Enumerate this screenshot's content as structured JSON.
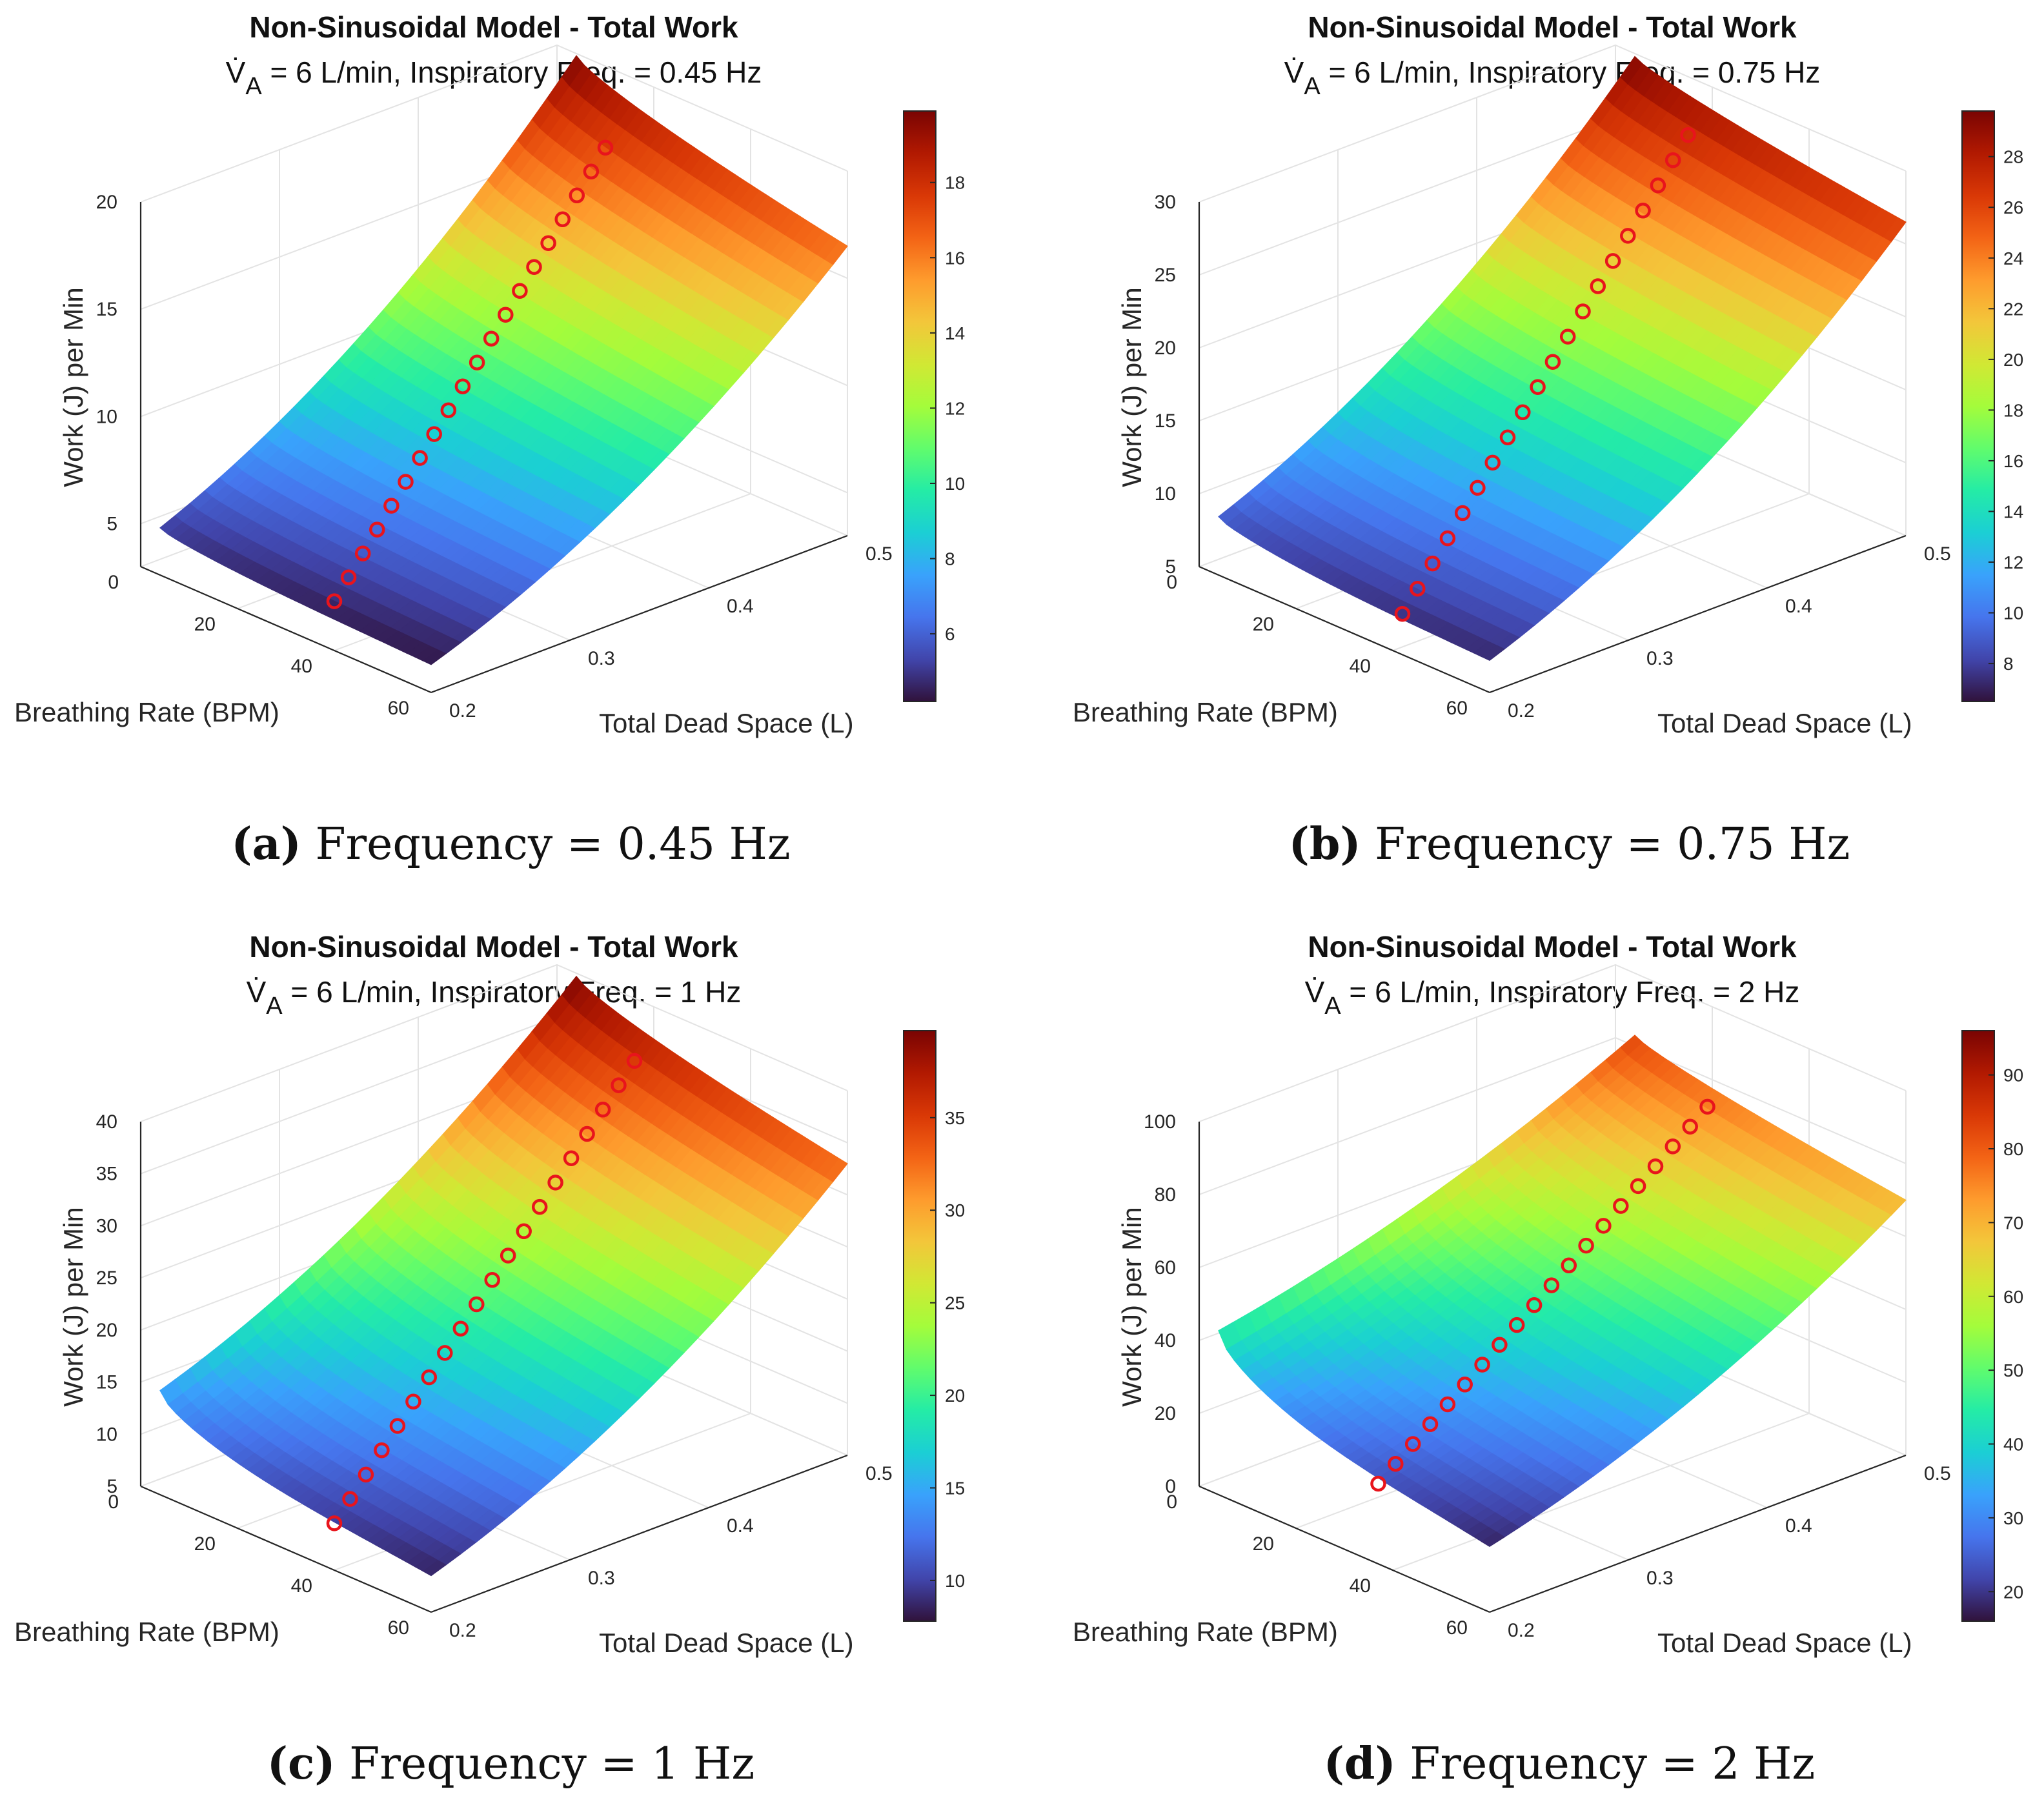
{
  "colormap": [
    "#30123b",
    "#4145ab",
    "#4675ed",
    "#39a2fc",
    "#1bcfd4",
    "#24eca6",
    "#61fc6c",
    "#a4fc3b",
    "#d1e834",
    "#f3c63a",
    "#fe9b2d",
    "#f36315",
    "#d93806",
    "#b11901",
    "#7a0403"
  ],
  "marker_color": "#e8141c",
  "chart_data": [
    {
      "type": "surface",
      "panel_letter": "(a)",
      "caption": "Frequency = 0.45 Hz",
      "title": "Non-Sinusoidal Model - Total Work",
      "subtitle_symbol": "V̇",
      "subtitle_sub": "A",
      "subtitle_rest": " = 6 L/min, Inspiratory Freq. = 0.45 Hz",
      "xlabel": "Breathing Rate (BPM)",
      "ylabel": "Total Dead Space (L)",
      "zlabel": "Work (J) per Min",
      "x_ticks": [
        "0",
        "20",
        "40",
        "60"
      ],
      "y_ticks": [
        "0.2",
        "0.3",
        "0.4",
        "0.5"
      ],
      "z_ticks": [
        "5",
        "10",
        "15",
        "20"
      ],
      "colorbar_ticks": [
        "6",
        "8",
        "10",
        "12",
        "14",
        "16",
        "18"
      ],
      "xlim": [
        0,
        60
      ],
      "ylim": [
        0.2,
        0.5
      ],
      "zlim": [
        3,
        20
      ],
      "clim": [
        4.2,
        19.9
      ],
      "W0": 4.2,
      "corners": {
        "rmin_dmin": 5.2,
        "rmax_dmin": 4.3,
        "rmin_dmax": 19.9,
        "rmax_dmax": 16.5
      },
      "markers": {
        "count": 20,
        "rate_start": 40,
        "rate_end": 10,
        "ds_start": 0.2,
        "ds_end": 0.5,
        "w_start": 5.3,
        "w_end": 16.2
      }
    },
    {
      "type": "surface",
      "panel_letter": "(b)",
      "caption": "Frequency = 0.75 Hz",
      "title": "Non-Sinusoidal Model - Total Work",
      "subtitle_symbol": "V̇",
      "subtitle_sub": "A",
      "subtitle_rest": " = 6 L/min, Inspiratory Freq. = 0.75 Hz",
      "xlabel": "Breathing Rate (BPM)",
      "ylabel": "Total Dead Space (L)",
      "zlabel": "Work (J) per Min",
      "x_ticks": [
        "0",
        "20",
        "40",
        "60"
      ],
      "y_ticks": [
        "0.2",
        "0.3",
        "0.4",
        "0.5"
      ],
      "z_ticks": [
        "5",
        "10",
        "15",
        "20",
        "25",
        "30"
      ],
      "colorbar_ticks": [
        "8",
        "10",
        "12",
        "14",
        "16",
        "18",
        "20",
        "22",
        "24",
        "26",
        "28"
      ],
      "xlim": [
        0,
        60
      ],
      "ylim": [
        0.2,
        0.5
      ],
      "zlim": [
        5,
        30
      ],
      "clim": [
        6.5,
        29.8
      ],
      "W0": 6.5,
      "corners": {
        "rmin_dmin": 9.0,
        "rmax_dmin": 7.2,
        "rmin_dmax": 29.8,
        "rmax_dmax": 26.5
      },
      "markers": {
        "count": 20,
        "rate_start": 42,
        "rate_end": 15,
        "ds_start": 0.2,
        "ds_end": 0.5,
        "w_start": 7.8,
        "w_end": 26.0
      }
    },
    {
      "type": "surface",
      "panel_letter": "(c)",
      "caption": "Frequency = 1 Hz",
      "title": "Non-Sinusoidal Model - Total Work",
      "subtitle_symbol": "V̇",
      "subtitle_sub": "A",
      "subtitle_rest": " = 6 L/min, Inspiratory Freq. = 1 Hz",
      "xlabel": "Breathing Rate (BPM)",
      "ylabel": "Total Dead Space (L)",
      "zlabel": "Work (J) per Min",
      "x_ticks": [
        "0",
        "20",
        "40",
        "60"
      ],
      "y_ticks": [
        "0.2",
        "0.3",
        "0.4",
        "0.5"
      ],
      "z_ticks": [
        "5",
        "10",
        "15",
        "20",
        "25",
        "30",
        "35",
        "40"
      ],
      "colorbar_ticks": [
        "10",
        "15",
        "20",
        "25",
        "30",
        "35"
      ],
      "xlim": [
        0,
        60
      ],
      "ylim": [
        0.2,
        0.5
      ],
      "zlim": [
        5,
        40
      ],
      "clim": [
        7.8,
        39.7
      ],
      "W0": 7.8,
      "corners": {
        "rmin_dmin": 15.0,
        "rmax_dmin": 8.5,
        "rmin_dmax": 39.7,
        "rmax_dmax": 33.0
      },
      "markers": {
        "count": 20,
        "rate_start": 40,
        "rate_end": 16,
        "ds_start": 0.2,
        "ds_end": 0.5,
        "w_start": 9.5,
        "w_end": 34.0
      }
    },
    {
      "type": "surface",
      "panel_letter": "(d)",
      "caption": "Frequency = 2 Hz",
      "title": "Non-Sinusoidal Model - Total Work",
      "subtitle_symbol": "V̇",
      "subtitle_sub": "A",
      "subtitle_rest": " = 6 L/min, Inspiratory Freq. = 2 Hz",
      "xlabel": "Breathing Rate (BPM)",
      "ylabel": "Total Dead Space (L)",
      "zlabel": "Work (J) per Min",
      "x_ticks": [
        "0",
        "20",
        "40",
        "60"
      ],
      "y_ticks": [
        "0.2",
        "0.3",
        "0.4",
        "0.5"
      ],
      "z_ticks": [
        "0",
        "20",
        "40",
        "60",
        "80",
        "100"
      ],
      "colorbar_ticks": [
        "20",
        "30",
        "40",
        "50",
        "60",
        "70",
        "80",
        "90"
      ],
      "xlim": [
        0,
        60
      ],
      "ylim": [
        0.2,
        0.5
      ],
      "zlim": [
        0,
        100
      ],
      "clim": [
        16.0,
        96.0
      ],
      "W0": 16.0,
      "corners": {
        "rmin_dmin": 45.0,
        "rmax_dmin": 18.0,
        "rmin_dmax": 83.0,
        "rmax_dmax": 70.0
      },
      "markers": {
        "count": 20,
        "rate_start": 37,
        "rate_end": 19,
        "ds_start": 0.2,
        "ds_end": 0.5,
        "w_start": 22.0,
        "w_end": 72.0
      }
    }
  ]
}
